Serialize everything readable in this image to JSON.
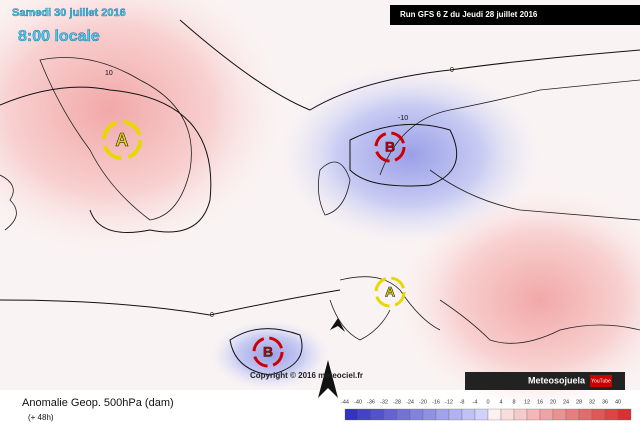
{
  "header": {
    "date": "Samedi 30 juillet 2016",
    "time": "8:00 locale",
    "run": "Run GFS 6 Z du Jeudi 28 juillet 2016"
  },
  "map": {
    "contour_labels": [
      "10",
      "0",
      "-10",
      "0"
    ],
    "centers": [
      {
        "label": "A"
      },
      {
        "label": "B"
      },
      {
        "label": "A"
      },
      {
        "label": "B"
      }
    ],
    "copyright": "Copyright © 2016 meteociel.fr"
  },
  "footer": {
    "title": "Anomalie Geop. 500hPa (dam)",
    "lead": "(+ 48h)",
    "brand": "Meteosojuela",
    "youtube": "YouTube"
  },
  "legend": {
    "scale": [
      -44,
      -40,
      -36,
      -32,
      -28,
      -24,
      -20,
      -16,
      -12,
      -8,
      -4,
      0,
      4,
      8,
      12,
      16,
      20,
      24,
      28,
      32,
      36,
      40
    ]
  }
}
